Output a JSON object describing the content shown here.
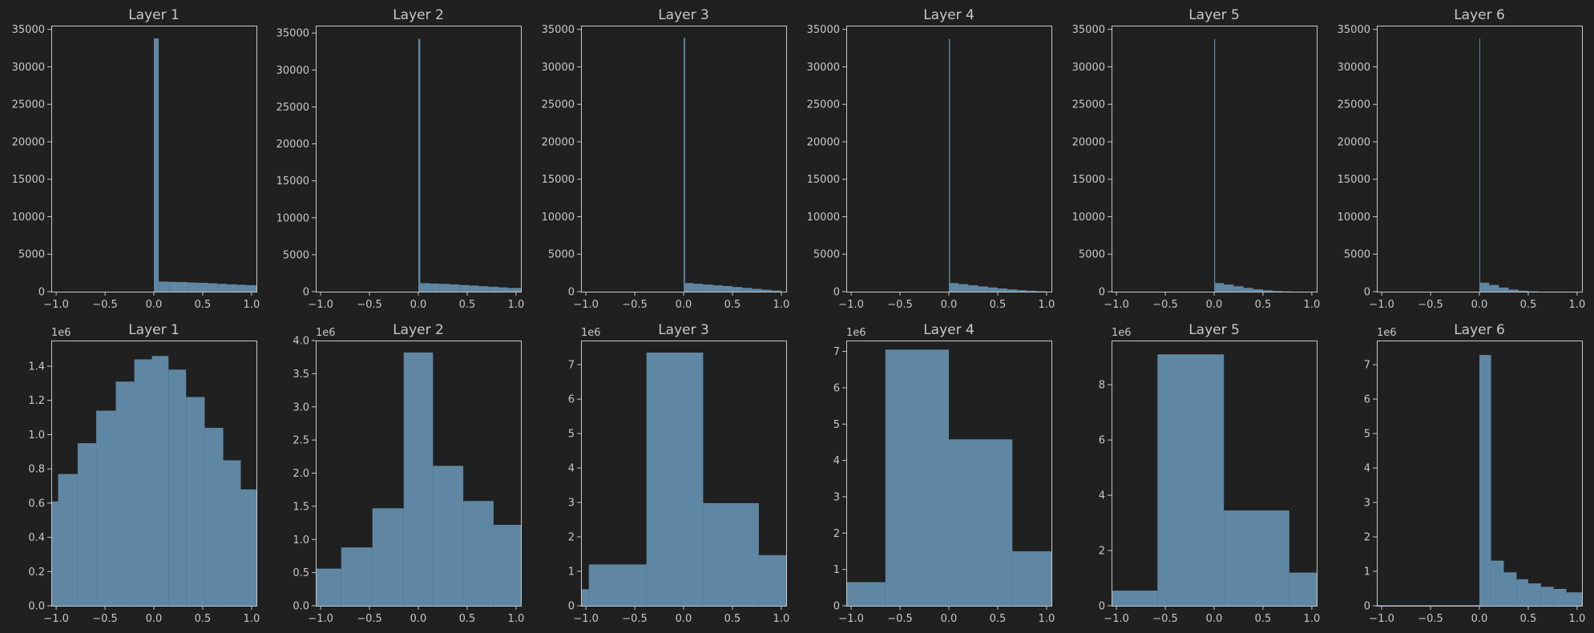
{
  "figure": {
    "background": "#202020",
    "text_color": "#c8c8c8",
    "bar_color": "#5f87a3"
  },
  "chart_data": [
    {
      "type": "bar",
      "title": "Layer 1",
      "xlabel": "",
      "ylabel": "",
      "xlim": [
        -1.05,
        1.05
      ],
      "ylim": [
        0,
        35500
      ],
      "yticks": [
        0,
        5000,
        10000,
        15000,
        20000,
        25000,
        30000,
        35000
      ],
      "ytick_labels": [
        "0",
        "5000",
        "10000",
        "15000",
        "20000",
        "25000",
        "30000",
        "35000"
      ],
      "xticks": [
        -1,
        -0.5,
        0,
        0.5,
        1
      ],
      "xtick_labels": [
        "−1.0",
        "−0.5",
        "0.0",
        "0.5",
        "1.0"
      ],
      "offset_label": "",
      "bins": [
        {
          "x0": 0,
          "x1": 0.05,
          "v": 33800
        },
        {
          "x0": 0.05,
          "x1": 0.15,
          "v": 1350
        },
        {
          "x0": 0.15,
          "x1": 0.25,
          "v": 1300
        },
        {
          "x0": 0.25,
          "x1": 0.35,
          "v": 1280
        },
        {
          "x0": 0.35,
          "x1": 0.45,
          "v": 1220
        },
        {
          "x0": 0.45,
          "x1": 0.55,
          "v": 1180
        },
        {
          "x0": 0.55,
          "x1": 0.65,
          "v": 1120
        },
        {
          "x0": 0.65,
          "x1": 0.75,
          "v": 1050
        },
        {
          "x0": 0.75,
          "x1": 0.85,
          "v": 980
        },
        {
          "x0": 0.85,
          "x1": 0.95,
          "v": 920
        },
        {
          "x0": 0.95,
          "x1": 1.05,
          "v": 870
        }
      ]
    },
    {
      "type": "bar",
      "title": "Layer 2",
      "xlabel": "",
      "ylabel": "",
      "xlim": [
        -1.05,
        1.05
      ],
      "ylim": [
        0,
        36000
      ],
      "yticks": [
        0,
        5000,
        10000,
        15000,
        20000,
        25000,
        30000,
        35000
      ],
      "ytick_labels": [
        "0",
        "5000",
        "10000",
        "15000",
        "20000",
        "25000",
        "30000",
        "35000"
      ],
      "xticks": [
        -1,
        -0.5,
        0,
        0.5,
        1
      ],
      "xtick_labels": [
        "−1.0",
        "−0.5",
        "0.0",
        "0.5",
        "1.0"
      ],
      "offset_label": "",
      "bins": [
        {
          "x0": 0,
          "x1": 0.02,
          "v": 34200
        },
        {
          "x0": 0.02,
          "x1": 0.12,
          "v": 1150
        },
        {
          "x0": 0.12,
          "x1": 0.22,
          "v": 1100
        },
        {
          "x0": 0.22,
          "x1": 0.32,
          "v": 1050
        },
        {
          "x0": 0.32,
          "x1": 0.42,
          "v": 980
        },
        {
          "x0": 0.42,
          "x1": 0.52,
          "v": 900
        },
        {
          "x0": 0.52,
          "x1": 0.62,
          "v": 820
        },
        {
          "x0": 0.62,
          "x1": 0.72,
          "v": 740
        },
        {
          "x0": 0.72,
          "x1": 0.82,
          "v": 660
        },
        {
          "x0": 0.82,
          "x1": 0.92,
          "v": 580
        },
        {
          "x0": 0.92,
          "x1": 1.05,
          "v": 500
        }
      ]
    },
    {
      "type": "bar",
      "title": "Layer 3",
      "xlabel": "",
      "ylabel": "",
      "xlim": [
        -1.05,
        1.05
      ],
      "ylim": [
        0,
        35500
      ],
      "yticks": [
        0,
        5000,
        10000,
        15000,
        20000,
        25000,
        30000,
        35000
      ],
      "ytick_labels": [
        "0",
        "5000",
        "10000",
        "15000",
        "20000",
        "25000",
        "30000",
        "35000"
      ],
      "xticks": [
        -1,
        -0.5,
        0,
        0.5,
        1
      ],
      "xtick_labels": [
        "−1.0",
        "−0.5",
        "0.0",
        "0.5",
        "1.0"
      ],
      "offset_label": "",
      "bins": [
        {
          "x0": 0,
          "x1": 0.015,
          "v": 33900
        },
        {
          "x0": 0.015,
          "x1": 0.1,
          "v": 1150
        },
        {
          "x0": 0.1,
          "x1": 0.2,
          "v": 1050
        },
        {
          "x0": 0.2,
          "x1": 0.3,
          "v": 950
        },
        {
          "x0": 0.3,
          "x1": 0.4,
          "v": 850
        },
        {
          "x0": 0.4,
          "x1": 0.5,
          "v": 750
        },
        {
          "x0": 0.5,
          "x1": 0.6,
          "v": 620
        },
        {
          "x0": 0.6,
          "x1": 0.7,
          "v": 500
        },
        {
          "x0": 0.7,
          "x1": 0.8,
          "v": 380
        },
        {
          "x0": 0.8,
          "x1": 0.9,
          "v": 260
        },
        {
          "x0": 0.9,
          "x1": 1.0,
          "v": 150
        }
      ]
    },
    {
      "type": "bar",
      "title": "Layer 4",
      "xlabel": "",
      "ylabel": "",
      "xlim": [
        -1.05,
        1.05
      ],
      "ylim": [
        0,
        35500
      ],
      "yticks": [
        0,
        5000,
        10000,
        15000,
        20000,
        25000,
        30000,
        35000
      ],
      "ytick_labels": [
        "0",
        "5000",
        "10000",
        "15000",
        "20000",
        "25000",
        "30000",
        "35000"
      ],
      "xticks": [
        -1,
        -0.5,
        0,
        0.5,
        1
      ],
      "xtick_labels": [
        "−1.0",
        "−0.5",
        "0.0",
        "0.5",
        "1.0"
      ],
      "offset_label": "",
      "bins": [
        {
          "x0": 0,
          "x1": 0.012,
          "v": 33700
        },
        {
          "x0": 0.012,
          "x1": 0.1,
          "v": 1150
        },
        {
          "x0": 0.1,
          "x1": 0.2,
          "v": 1000
        },
        {
          "x0": 0.2,
          "x1": 0.3,
          "v": 850
        },
        {
          "x0": 0.3,
          "x1": 0.4,
          "v": 700
        },
        {
          "x0": 0.4,
          "x1": 0.5,
          "v": 560
        },
        {
          "x0": 0.5,
          "x1": 0.6,
          "v": 420
        },
        {
          "x0": 0.6,
          "x1": 0.7,
          "v": 300
        },
        {
          "x0": 0.7,
          "x1": 0.8,
          "v": 200
        },
        {
          "x0": 0.8,
          "x1": 0.9,
          "v": 120
        },
        {
          "x0": 0.9,
          "x1": 1.0,
          "v": 60
        }
      ]
    },
    {
      "type": "bar",
      "title": "Layer 5",
      "xlabel": "",
      "ylabel": "",
      "xlim": [
        -1.05,
        1.05
      ],
      "ylim": [
        0,
        35500
      ],
      "yticks": [
        0,
        5000,
        10000,
        15000,
        20000,
        25000,
        30000,
        35000
      ],
      "ytick_labels": [
        "0",
        "5000",
        "10000",
        "15000",
        "20000",
        "25000",
        "30000",
        "35000"
      ],
      "xticks": [
        -1,
        -0.5,
        0,
        0.5,
        1
      ],
      "xtick_labels": [
        "−1.0",
        "−0.5",
        "0.0",
        "0.5",
        "1.0"
      ],
      "offset_label": "",
      "bins": [
        {
          "x0": 0,
          "x1": 0.01,
          "v": 33700
        },
        {
          "x0": 0.01,
          "x1": 0.1,
          "v": 1150
        },
        {
          "x0": 0.1,
          "x1": 0.2,
          "v": 950
        },
        {
          "x0": 0.2,
          "x1": 0.3,
          "v": 720
        },
        {
          "x0": 0.3,
          "x1": 0.4,
          "v": 500
        },
        {
          "x0": 0.4,
          "x1": 0.5,
          "v": 320
        },
        {
          "x0": 0.5,
          "x1": 0.6,
          "v": 180
        },
        {
          "x0": 0.6,
          "x1": 0.7,
          "v": 80
        },
        {
          "x0": 0.7,
          "x1": 0.8,
          "v": 30
        }
      ]
    },
    {
      "type": "bar",
      "title": "Layer 6",
      "xlabel": "",
      "ylabel": "",
      "xlim": [
        -1.05,
        1.05
      ],
      "ylim": [
        0,
        35500
      ],
      "yticks": [
        0,
        5000,
        10000,
        15000,
        20000,
        25000,
        30000,
        35000
      ],
      "ytick_labels": [
        "0",
        "5000",
        "10000",
        "15000",
        "20000",
        "25000",
        "30000",
        "35000"
      ],
      "xticks": [
        -1,
        -0.5,
        0,
        0.5,
        1
      ],
      "xtick_labels": [
        "−1.0",
        "−0.5",
        "0.0",
        "0.5",
        "1.0"
      ],
      "offset_label": "",
      "bins": [
        {
          "x0": 0,
          "x1": 0.008,
          "v": 33800
        },
        {
          "x0": 0.008,
          "x1": 0.1,
          "v": 1200
        },
        {
          "x0": 0.1,
          "x1": 0.2,
          "v": 900
        },
        {
          "x0": 0.2,
          "x1": 0.3,
          "v": 550
        },
        {
          "x0": 0.3,
          "x1": 0.4,
          "v": 280
        },
        {
          "x0": 0.4,
          "x1": 0.5,
          "v": 120
        },
        {
          "x0": 0.5,
          "x1": 0.6,
          "v": 40
        }
      ]
    },
    {
      "type": "bar",
      "title": "Layer 1",
      "xlabel": "",
      "ylabel": "",
      "xlim": [
        -1.05,
        1.05
      ],
      "ylim": [
        0,
        1.55
      ],
      "yticks": [
        0,
        0.2,
        0.4,
        0.6,
        0.8,
        1.0,
        1.2,
        1.4
      ],
      "ytick_labels": [
        "0.0",
        "0.2",
        "0.4",
        "0.6",
        "0.8",
        "1.0",
        "1.2",
        "1.4"
      ],
      "xticks": [
        -1,
        -0.5,
        0,
        0.5,
        1
      ],
      "xtick_labels": [
        "−1.0",
        "−0.5",
        "0.0",
        "0.5",
        "1.0"
      ],
      "offset_label": "1e6",
      "bins": [
        {
          "x0": -1.05,
          "x1": -0.98,
          "v": 0.61
        },
        {
          "x0": -0.98,
          "x1": -0.78,
          "v": 0.77
        },
        {
          "x0": -0.78,
          "x1": -0.59,
          "v": 0.95
        },
        {
          "x0": -0.59,
          "x1": -0.39,
          "v": 1.14
        },
        {
          "x0": -0.39,
          "x1": -0.2,
          "v": 1.31
        },
        {
          "x0": -0.2,
          "x1": -0.02,
          "v": 1.44
        },
        {
          "x0": -0.02,
          "x1": 0.15,
          "v": 1.46
        },
        {
          "x0": 0.15,
          "x1": 0.33,
          "v": 1.38
        },
        {
          "x0": 0.33,
          "x1": 0.52,
          "v": 1.22
        },
        {
          "x0": 0.52,
          "x1": 0.71,
          "v": 1.04
        },
        {
          "x0": 0.71,
          "x1": 0.89,
          "v": 0.85
        },
        {
          "x0": 0.89,
          "x1": 1.05,
          "v": 0.68
        }
      ]
    },
    {
      "type": "bar",
      "title": "Layer 2",
      "xlabel": "",
      "ylabel": "",
      "xlim": [
        -1.05,
        1.05
      ],
      "ylim": [
        0,
        4.0
      ],
      "yticks": [
        0,
        0.5,
        1.0,
        1.5,
        2.0,
        2.5,
        3.0,
        3.5,
        4.0
      ],
      "ytick_labels": [
        "0.0",
        "0.5",
        "1.0",
        "1.5",
        "2.0",
        "2.5",
        "3.0",
        "3.5",
        "4.0"
      ],
      "xticks": [
        -1,
        -0.5,
        0,
        0.5,
        1
      ],
      "xtick_labels": [
        "−1.0",
        "−0.5",
        "0.0",
        "0.5",
        "1.0"
      ],
      "offset_label": "1e6",
      "bins": [
        {
          "x0": -1.05,
          "x1": -0.79,
          "v": 0.56
        },
        {
          "x0": -0.79,
          "x1": -0.47,
          "v": 0.88
        },
        {
          "x0": -0.47,
          "x1": -0.15,
          "v": 1.47
        },
        {
          "x0": -0.15,
          "x1": 0.15,
          "v": 3.82
        },
        {
          "x0": 0.15,
          "x1": 0.46,
          "v": 2.11
        },
        {
          "x0": 0.46,
          "x1": 0.77,
          "v": 1.58
        },
        {
          "x0": 0.77,
          "x1": 1.05,
          "v": 1.22
        }
      ]
    },
    {
      "type": "bar",
      "title": "Layer 3",
      "xlabel": "",
      "ylabel": "",
      "xlim": [
        -1.05,
        1.05
      ],
      "ylim": [
        0,
        7.7
      ],
      "yticks": [
        0,
        1,
        2,
        3,
        4,
        5,
        6,
        7
      ],
      "ytick_labels": [
        "0",
        "1",
        "2",
        "3",
        "4",
        "5",
        "6",
        "7"
      ],
      "xticks": [
        -1,
        -0.5,
        0,
        0.5,
        1
      ],
      "xtick_labels": [
        "−1.0",
        "−0.5",
        "0.0",
        "0.5",
        "1.0"
      ],
      "offset_label": "1e6",
      "bins": [
        {
          "x0": -1.05,
          "x1": -0.97,
          "v": 0.48
        },
        {
          "x0": -0.97,
          "x1": -0.38,
          "v": 1.2
        },
        {
          "x0": -0.38,
          "x1": 0.2,
          "v": 7.35
        },
        {
          "x0": 0.2,
          "x1": 0.77,
          "v": 2.98
        },
        {
          "x0": 0.77,
          "x1": 1.05,
          "v": 1.47
        }
      ]
    },
    {
      "type": "bar",
      "title": "Layer 4",
      "xlabel": "",
      "ylabel": "",
      "xlim": [
        -1.05,
        1.05
      ],
      "ylim": [
        0,
        7.3
      ],
      "yticks": [
        0,
        1,
        2,
        3,
        4,
        5,
        6,
        7
      ],
      "ytick_labels": [
        "0",
        "1",
        "2",
        "3",
        "4",
        "5",
        "6",
        "7"
      ],
      "xticks": [
        -1,
        -0.5,
        0,
        0.5,
        1
      ],
      "xtick_labels": [
        "−1.0",
        "−0.5",
        "0.0",
        "0.5",
        "1.0"
      ],
      "offset_label": "1e6",
      "bins": [
        {
          "x0": -1.05,
          "x1": -0.65,
          "v": 0.65
        },
        {
          "x0": -0.65,
          "x1": 0.0,
          "v": 7.05
        },
        {
          "x0": 0.0,
          "x1": 0.65,
          "v": 4.58
        },
        {
          "x0": 0.65,
          "x1": 1.05,
          "v": 1.5
        }
      ]
    },
    {
      "type": "bar",
      "title": "Layer 5",
      "xlabel": "",
      "ylabel": "",
      "xlim": [
        -1.05,
        1.05
      ],
      "ylim": [
        0,
        9.6
      ],
      "yticks": [
        0,
        2,
        4,
        6,
        8
      ],
      "ytick_labels": [
        "0",
        "2",
        "4",
        "6",
        "8"
      ],
      "xticks": [
        -1,
        -0.5,
        0,
        0.5,
        1
      ],
      "xtick_labels": [
        "−1.0",
        "−0.5",
        "0.0",
        "0.5",
        "1.0"
      ],
      "offset_label": "1e6",
      "bins": [
        {
          "x0": -1.05,
          "x1": -0.58,
          "v": 0.55
        },
        {
          "x0": -0.58,
          "x1": 0.1,
          "v": 9.1
        },
        {
          "x0": 0.1,
          "x1": 0.77,
          "v": 3.45
        },
        {
          "x0": 0.77,
          "x1": 1.05,
          "v": 1.2
        }
      ]
    },
    {
      "type": "bar",
      "title": "Layer 6",
      "xlabel": "",
      "ylabel": "",
      "xlim": [
        -1.05,
        1.05
      ],
      "ylim": [
        0,
        7.7
      ],
      "yticks": [
        0,
        1,
        2,
        3,
        4,
        5,
        6,
        7
      ],
      "ytick_labels": [
        "0",
        "1",
        "2",
        "3",
        "4",
        "5",
        "6",
        "7"
      ],
      "xticks": [
        -1,
        -0.5,
        0,
        0.5,
        1
      ],
      "xtick_labels": [
        "−1.0",
        "−0.5",
        "0.0",
        "0.5",
        "1.0"
      ],
      "offset_label": "1e6",
      "bins": [
        {
          "x0": -1.05,
          "x1": 0.0,
          "v": 0.02
        },
        {
          "x0": 0.0,
          "x1": 0.12,
          "v": 7.28
        },
        {
          "x0": 0.12,
          "x1": 0.25,
          "v": 1.31
        },
        {
          "x0": 0.25,
          "x1": 0.38,
          "v": 0.97
        },
        {
          "x0": 0.38,
          "x1": 0.5,
          "v": 0.77
        },
        {
          "x0": 0.5,
          "x1": 0.63,
          "v": 0.65
        },
        {
          "x0": 0.63,
          "x1": 0.76,
          "v": 0.55
        },
        {
          "x0": 0.76,
          "x1": 0.89,
          "v": 0.49
        },
        {
          "x0": 0.89,
          "x1": 1.05,
          "v": 0.39
        }
      ]
    }
  ]
}
